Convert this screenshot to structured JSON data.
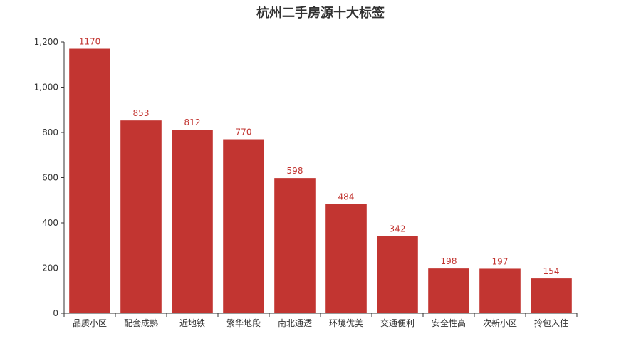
{
  "chart_data": {
    "type": "bar",
    "title": "杭州二手房源十大标签",
    "categories": [
      "品质小区",
      "配套成熟",
      "近地铁",
      "繁华地段",
      "南北通透",
      "环境优美",
      "交通便利",
      "安全性高",
      "次新小区",
      "拎包入住"
    ],
    "values": [
      1170,
      853,
      812,
      770,
      598,
      484,
      342,
      198,
      197,
      154
    ],
    "yticks": [
      "0",
      "200",
      "400",
      "600",
      "800",
      "1,000",
      "1,200"
    ],
    "ylim": [
      0,
      1200
    ],
    "xlabel": "",
    "ylabel": "",
    "grid": false,
    "bar_color": "#c23531",
    "axis_color": "#333333"
  }
}
